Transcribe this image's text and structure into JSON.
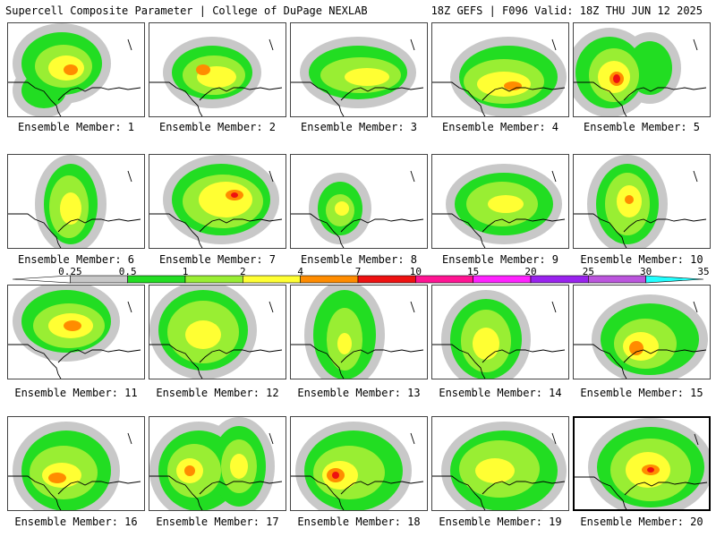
{
  "header": {
    "left": "Supercell Composite Parameter | College of DuPage NEXLAB",
    "right": "18Z GEFS | F096 Valid: 18Z THU JUN 12 2025"
  },
  "colorbar": {
    "ticks": [
      "0.25",
      "0.5",
      "1",
      "2",
      "4",
      "7",
      "10",
      "15",
      "20",
      "25",
      "30",
      "35"
    ],
    "colors": [
      "#ffffff",
      "#c8c8c8",
      "#22dd22",
      "#99ee33",
      "#ffff33",
      "#ff8c00",
      "#ee1111",
      "#ff1493",
      "#ff22ff",
      "#9922ee",
      "#bb55dd",
      "#22ffff"
    ]
  },
  "members": [
    {
      "label": "Ensemble Member: 1"
    },
    {
      "label": "Ensemble Member: 2"
    },
    {
      "label": "Ensemble Member: 3"
    },
    {
      "label": "Ensemble Member: 4"
    },
    {
      "label": "Ensemble Member: 5"
    },
    {
      "label": "Ensemble Member: 6"
    },
    {
      "label": "Ensemble Member: 7"
    },
    {
      "label": "Ensemble Member: 8"
    },
    {
      "label": "Ensemble Member: 9"
    },
    {
      "label": "Ensemble Member: 10"
    },
    {
      "label": "Ensemble Member: 11"
    },
    {
      "label": "Ensemble Member: 12"
    },
    {
      "label": "Ensemble Member: 13"
    },
    {
      "label": "Ensemble Member: 14"
    },
    {
      "label": "Ensemble Member: 15"
    },
    {
      "label": "Ensemble Member: 16"
    },
    {
      "label": "Ensemble Member: 17"
    },
    {
      "label": "Ensemble Member: 18"
    },
    {
      "label": "Ensemble Member: 19"
    },
    {
      "label": "Ensemble Member: 20"
    }
  ]
}
